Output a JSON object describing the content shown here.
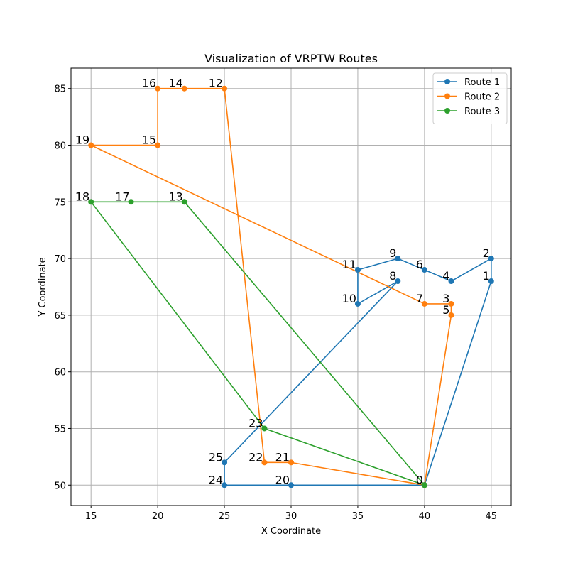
{
  "chart_data": {
    "type": "line",
    "title": "Visualization of VRPTW Routes",
    "xlabel": "X Coordinate",
    "ylabel": "Y Coordinate",
    "xlim": [
      13.5,
      46.5
    ],
    "ylim": [
      48.2,
      86.8
    ],
    "xticks": [
      15,
      20,
      25,
      30,
      35,
      40,
      45
    ],
    "yticks": [
      50,
      55,
      60,
      65,
      70,
      75,
      80,
      85
    ],
    "grid": true,
    "legend_position": "top-right",
    "nodes": [
      {
        "id": "0",
        "x": 40,
        "y": 50
      },
      {
        "id": "1",
        "x": 45,
        "y": 68
      },
      {
        "id": "2",
        "x": 45,
        "y": 70
      },
      {
        "id": "3",
        "x": 42,
        "y": 66
      },
      {
        "id": "4",
        "x": 42,
        "y": 68
      },
      {
        "id": "5",
        "x": 42,
        "y": 65
      },
      {
        "id": "6",
        "x": 40,
        "y": 69
      },
      {
        "id": "7",
        "x": 40,
        "y": 66
      },
      {
        "id": "8",
        "x": 38,
        "y": 68
      },
      {
        "id": "9",
        "x": 38,
        "y": 70
      },
      {
        "id": "10",
        "x": 35,
        "y": 66
      },
      {
        "id": "11",
        "x": 35,
        "y": 69
      },
      {
        "id": "12",
        "x": 25,
        "y": 85
      },
      {
        "id": "13",
        "x": 22,
        "y": 75
      },
      {
        "id": "14",
        "x": 22,
        "y": 85
      },
      {
        "id": "15",
        "x": 20,
        "y": 80
      },
      {
        "id": "16",
        "x": 20,
        "y": 85
      },
      {
        "id": "17",
        "x": 18,
        "y": 75
      },
      {
        "id": "18",
        "x": 15,
        "y": 75
      },
      {
        "id": "19",
        "x": 15,
        "y": 80
      },
      {
        "id": "20",
        "x": 30,
        "y": 50
      },
      {
        "id": "21",
        "x": 30,
        "y": 52
      },
      {
        "id": "22",
        "x": 28,
        "y": 52
      },
      {
        "id": "23",
        "x": 28,
        "y": 55
      },
      {
        "id": "24",
        "x": 25,
        "y": 50
      },
      {
        "id": "25",
        "x": 25,
        "y": 52
      }
    ],
    "series": [
      {
        "name": "Route 1",
        "color": "#1f77b4",
        "x": [
          40,
          45,
          45,
          42,
          40,
          38,
          35,
          35,
          38,
          25,
          25,
          30,
          40
        ],
        "y": [
          50,
          68,
          70,
          68,
          69,
          70,
          69,
          66,
          68,
          52,
          50,
          50,
          50
        ]
      },
      {
        "name": "Route 2",
        "color": "#ff7f0e",
        "x": [
          40,
          42,
          42,
          40,
          15,
          20,
          20,
          22,
          25,
          28,
          30,
          40
        ],
        "y": [
          50,
          65,
          66,
          66,
          80,
          80,
          85,
          85,
          85,
          52,
          52,
          50
        ]
      },
      {
        "name": "Route 3",
        "color": "#2ca02c",
        "x": [
          40,
          22,
          18,
          15,
          28,
          40
        ],
        "y": [
          50,
          75,
          75,
          75,
          55,
          50
        ]
      }
    ]
  }
}
